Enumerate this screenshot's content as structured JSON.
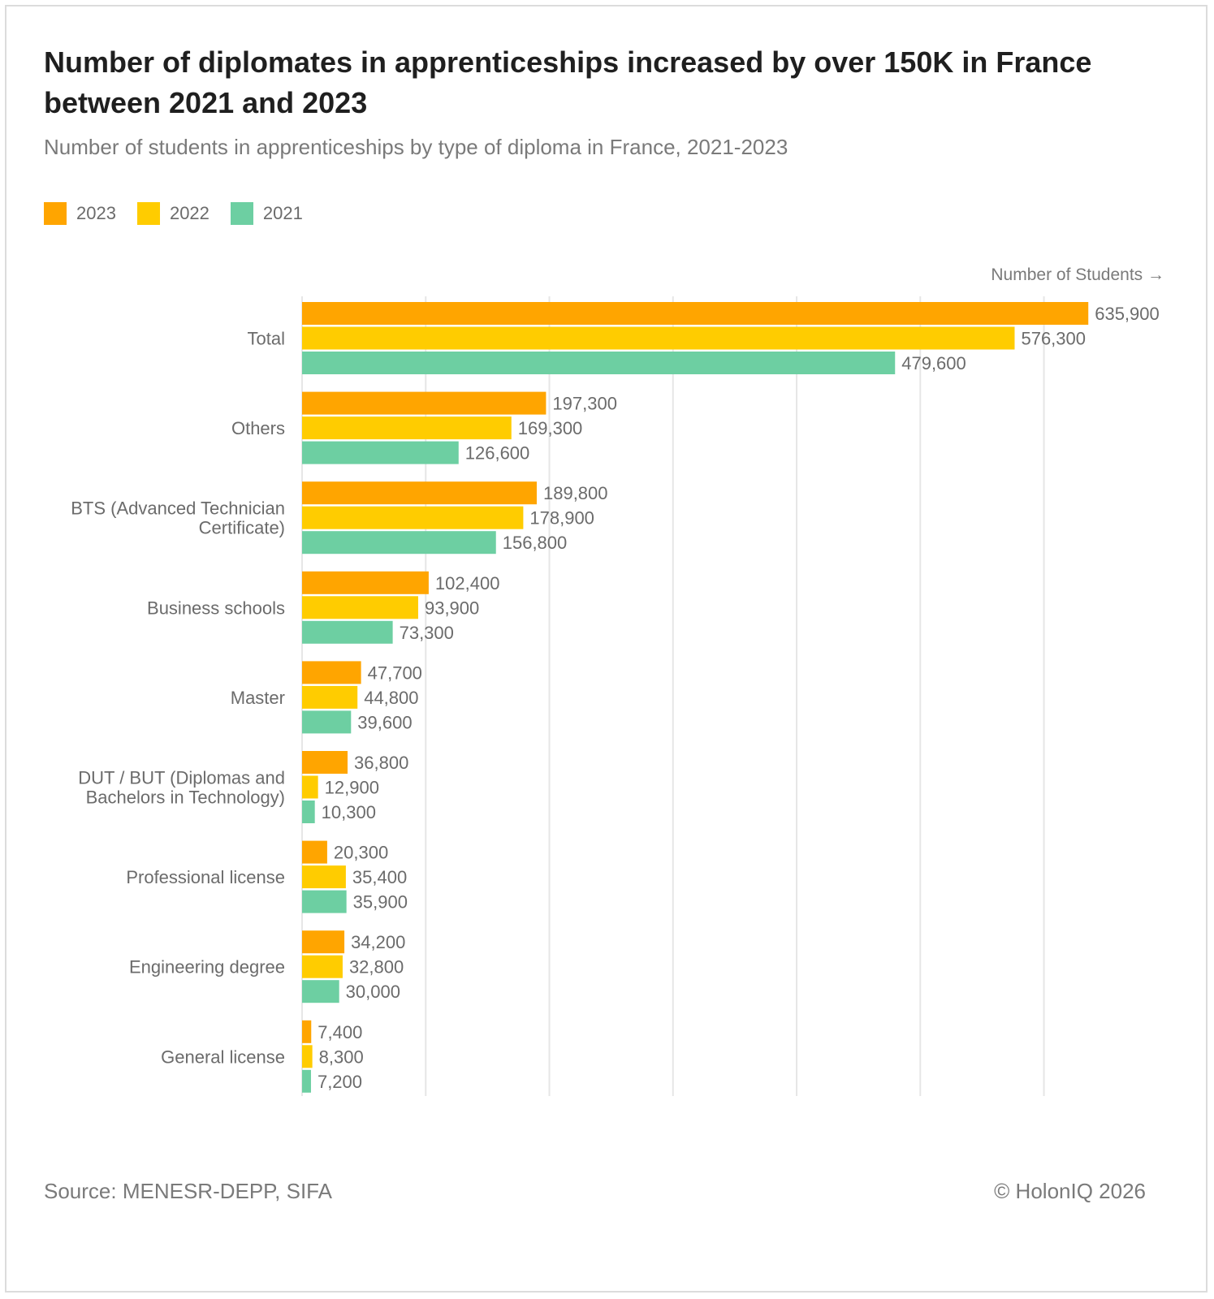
{
  "header": {
    "title": "Number of diplomates in apprenticeships increased by over 150K in France between 2021 and 2023",
    "subtitle": "Number of students in apprenticeships by type of diploma in France, 2021-2023"
  },
  "colors": {
    "y2023": "#FFA500",
    "y2022": "#FFCC00",
    "y2021": "#6DCFA2",
    "grid": "#e6e6e6",
    "label": "#6b6b6b"
  },
  "chart_data": {
    "type": "bar",
    "orientation": "horizontal",
    "xlabel": "Number of Students →",
    "xlim": [
      0,
      700000
    ],
    "grid": true,
    "legend": "top-left",
    "categories": [
      "Total",
      "Others",
      "BTS (Advanced Technician Certificate)",
      "Business schools",
      "Master",
      "DUT / BUT (Diplomas and Bachelors in Technology)",
      "Professional license",
      "Engineering degree",
      "General license"
    ],
    "category_lines": [
      [
        "Total"
      ],
      [
        "Others"
      ],
      [
        "BTS (Advanced Technician",
        "Certificate)"
      ],
      [
        "Business schools"
      ],
      [
        "Master"
      ],
      [
        "DUT / BUT (Diplomas and",
        "Bachelors in Technology)"
      ],
      [
        "Professional license"
      ],
      [
        "Engineering degree"
      ],
      [
        "General license"
      ]
    ],
    "series": [
      {
        "name": "2023",
        "color": "#FFA500",
        "values": [
          635900,
          197300,
          189800,
          102400,
          47700,
          36800,
          20300,
          34200,
          7400
        ],
        "labels": [
          "635,900",
          "197,300",
          "189,800",
          "102,400",
          "47,700",
          "36,800",
          "20,300",
          "34,200",
          "7,400"
        ]
      },
      {
        "name": "2022",
        "color": "#FFCC00",
        "values": [
          576300,
          169300,
          178900,
          93900,
          44800,
          12900,
          35400,
          32800,
          8300
        ],
        "labels": [
          "576,300",
          "169,300",
          "178,900",
          "93,900",
          "44,800",
          "12,900",
          "35,400",
          "32,800",
          "8,300"
        ]
      },
      {
        "name": "2021",
        "color": "#6DCFA2",
        "values": [
          479600,
          126600,
          156800,
          73300,
          39600,
          10300,
          35900,
          30000,
          7200
        ],
        "labels": [
          "479,600",
          "126,600",
          "156,800",
          "73,300",
          "39,600",
          "10,300",
          "35,900",
          "30,000",
          "7,200"
        ]
      }
    ]
  },
  "footer": {
    "source": "Source: MENESR-DEPP, SIFA",
    "copyright": "© HolonIQ 2026"
  }
}
